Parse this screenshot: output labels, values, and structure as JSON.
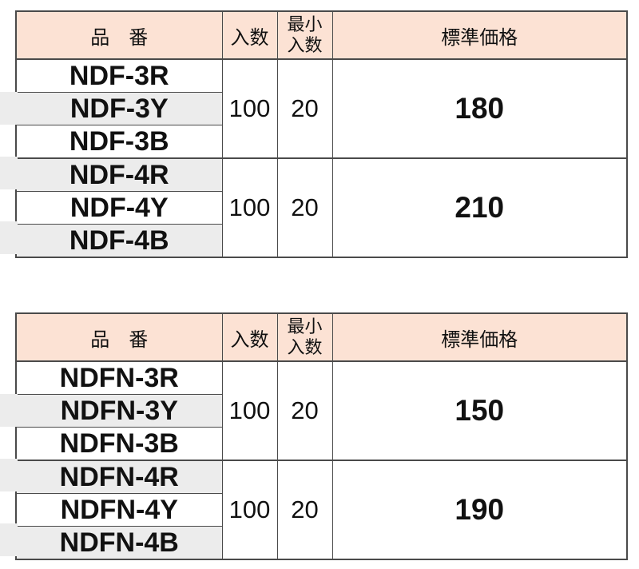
{
  "colors": {
    "header_bg": "#fce2d4",
    "stripe_bg": "#ececec",
    "border": "#4a4a4a",
    "text": "#111111"
  },
  "tables": [
    {
      "header": {
        "part_no": "品　番",
        "qty": "入数",
        "min_qty_line1": "最小",
        "min_qty_line2": "入数",
        "price": "標準価格"
      },
      "groups": [
        {
          "parts": [
            "NDF-3R",
            "NDF-3Y",
            "NDF-3B"
          ],
          "qty": "100",
          "min_qty": "20",
          "price": "180"
        },
        {
          "parts": [
            "NDF-4R",
            "NDF-4Y",
            "NDF-4B"
          ],
          "qty": "100",
          "min_qty": "20",
          "price": "210"
        }
      ]
    },
    {
      "header": {
        "part_no": "品　番",
        "qty": "入数",
        "min_qty_line1": "最小",
        "min_qty_line2": "入数",
        "price": "標準価格"
      },
      "groups": [
        {
          "parts": [
            "NDFN-3R",
            "NDFN-3Y",
            "NDFN-3B"
          ],
          "qty": "100",
          "min_qty": "20",
          "price": "150"
        },
        {
          "parts": [
            "NDFN-4R",
            "NDFN-4Y",
            "NDFN-4B"
          ],
          "qty": "100",
          "min_qty": "20",
          "price": "190"
        }
      ]
    }
  ]
}
